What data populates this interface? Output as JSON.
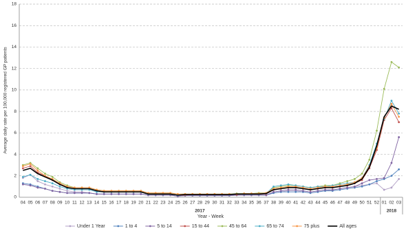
{
  "chart_data": {
    "type": "line",
    "y_label": "Average daily rate per 100,000 registered GP patients",
    "x_label": "Year - Week",
    "categories": [
      "04",
      "05",
      "06",
      "07",
      "08",
      "09",
      "10",
      "11",
      "12",
      "13",
      "14",
      "15",
      "16",
      "17",
      "18",
      "19",
      "20",
      "21",
      "22",
      "23",
      "24",
      "25",
      "26",
      "27",
      "28",
      "29",
      "30",
      "31",
      "32",
      "33",
      "34",
      "35",
      "36",
      "37",
      "38",
      "39",
      "40",
      "41",
      "42",
      "43",
      "44",
      "45",
      "46",
      "47",
      "48",
      "49",
      "50",
      "51",
      "52",
      "01",
      "02",
      "03"
    ],
    "x_groups": [
      {
        "label": "2017",
        "count": 49
      },
      {
        "label": "2018",
        "count": 3
      }
    ],
    "ylim": [
      0,
      18
    ],
    "yticks": [
      0,
      2,
      4,
      6,
      8,
      10,
      12,
      14,
      16,
      18
    ],
    "grid": true,
    "legend": "bottom",
    "series": [
      {
        "name": "Under 1 Year",
        "color": "#b3a2c7",
        "values": [
          1.8,
          2.1,
          1.5,
          1.2,
          1.0,
          0.8,
          0.6,
          0.5,
          0.5,
          0.4,
          0.3,
          0.3,
          0.3,
          0.3,
          0.3,
          0.3,
          0.3,
          0.2,
          0.2,
          0.2,
          0.2,
          0.1,
          0.2,
          0.2,
          0.2,
          0.2,
          0.2,
          0.2,
          0.2,
          0.2,
          0.2,
          0.2,
          0.2,
          0.2,
          0.4,
          0.5,
          0.6,
          0.6,
          0.5,
          0.4,
          0.5,
          0.6,
          0.7,
          0.8,
          0.9,
          1.0,
          1.1,
          1.2,
          1.3,
          0.7,
          0.9,
          1.7
        ]
      },
      {
        "name": "1 to 4",
        "color": "#4f81bd",
        "values": [
          1.3,
          1.2,
          1.0,
          0.8,
          0.6,
          0.5,
          0.4,
          0.4,
          0.4,
          0.4,
          0.3,
          0.3,
          0.3,
          0.3,
          0.3,
          0.3,
          0.3,
          0.2,
          0.2,
          0.2,
          0.2,
          0.1,
          0.15,
          0.15,
          0.15,
          0.15,
          0.15,
          0.15,
          0.15,
          0.2,
          0.2,
          0.2,
          0.2,
          0.2,
          0.4,
          0.5,
          0.5,
          0.5,
          0.5,
          0.4,
          0.5,
          0.6,
          0.6,
          0.7,
          0.8,
          0.9,
          1.0,
          1.2,
          1.5,
          1.7,
          2.0,
          2.6
        ]
      },
      {
        "name": "5 to 14",
        "color": "#8064a2",
        "values": [
          1.2,
          1.1,
          0.9,
          0.8,
          0.6,
          0.5,
          0.4,
          0.4,
          0.4,
          0.4,
          0.3,
          0.3,
          0.3,
          0.3,
          0.3,
          0.3,
          0.3,
          0.2,
          0.2,
          0.2,
          0.2,
          0.1,
          0.15,
          0.15,
          0.15,
          0.15,
          0.15,
          0.15,
          0.15,
          0.2,
          0.2,
          0.2,
          0.2,
          0.2,
          0.5,
          0.6,
          0.7,
          0.7,
          0.6,
          0.5,
          0.6,
          0.7,
          0.7,
          0.8,
          0.9,
          1.0,
          1.3,
          1.6,
          1.7,
          1.8,
          3.2,
          5.6
        ]
      },
      {
        "name": "15 to 44",
        "color": "#c0504d",
        "values": [
          2.7,
          2.9,
          2.3,
          2.0,
          1.6,
          1.2,
          0.9,
          0.8,
          0.8,
          0.8,
          0.6,
          0.5,
          0.5,
          0.5,
          0.5,
          0.5,
          0.5,
          0.3,
          0.3,
          0.3,
          0.3,
          0.2,
          0.2,
          0.25,
          0.25,
          0.25,
          0.25,
          0.25,
          0.25,
          0.25,
          0.3,
          0.3,
          0.3,
          0.3,
          0.7,
          0.8,
          0.9,
          0.9,
          0.8,
          0.7,
          0.8,
          0.9,
          0.9,
          1.0,
          1.1,
          1.3,
          1.6,
          2.7,
          4.4,
          7.2,
          8.3,
          7.0
        ]
      },
      {
        "name": "45 to 64",
        "color": "#9bbb59",
        "values": [
          3.0,
          3.2,
          2.7,
          2.2,
          1.9,
          1.4,
          1.1,
          0.9,
          0.9,
          0.9,
          0.7,
          0.6,
          0.6,
          0.6,
          0.6,
          0.6,
          0.6,
          0.4,
          0.4,
          0.4,
          0.4,
          0.3,
          0.3,
          0.3,
          0.3,
          0.3,
          0.3,
          0.3,
          0.3,
          0.35,
          0.35,
          0.35,
          0.4,
          0.4,
          0.9,
          1.0,
          1.1,
          1.1,
          1.0,
          0.9,
          1.0,
          1.1,
          1.1,
          1.3,
          1.5,
          1.7,
          2.2,
          3.5,
          6.2,
          10.1,
          12.6,
          12.1
        ]
      },
      {
        "name": "65 to 74",
        "color": "#4bacc6",
        "values": [
          1.9,
          2.1,
          1.7,
          1.5,
          1.3,
          1.0,
          0.8,
          0.7,
          0.7,
          0.7,
          0.5,
          0.5,
          0.5,
          0.5,
          0.5,
          0.5,
          0.5,
          0.3,
          0.3,
          0.3,
          0.3,
          0.2,
          0.25,
          0.25,
          0.25,
          0.25,
          0.25,
          0.25,
          0.25,
          0.3,
          0.3,
          0.3,
          0.3,
          0.35,
          1.0,
          1.1,
          1.2,
          1.1,
          1.0,
          0.9,
          1.0,
          1.0,
          1.1,
          1.2,
          1.3,
          1.4,
          1.8,
          3.0,
          5.0,
          7.3,
          9.0,
          7.8
        ]
      },
      {
        "name": "75 plus",
        "color": "#f79646",
        "values": [
          2.9,
          3.1,
          2.5,
          2.0,
          1.7,
          1.3,
          1.0,
          0.9,
          0.9,
          0.9,
          0.7,
          0.6,
          0.6,
          0.6,
          0.6,
          0.6,
          0.6,
          0.4,
          0.4,
          0.4,
          0.4,
          0.3,
          0.3,
          0.3,
          0.3,
          0.3,
          0.3,
          0.3,
          0.3,
          0.3,
          0.35,
          0.35,
          0.35,
          0.4,
          0.8,
          0.9,
          1.0,
          1.0,
          0.9,
          0.8,
          0.9,
          1.0,
          1.0,
          1.1,
          1.2,
          1.4,
          1.8,
          2.9,
          4.6,
          7.4,
          8.7,
          7.5
        ]
      },
      {
        "name": "All ages",
        "color": "#000000",
        "values": [
          2.5,
          2.7,
          2.2,
          1.9,
          1.6,
          1.2,
          0.9,
          0.8,
          0.8,
          0.8,
          0.6,
          0.5,
          0.5,
          0.5,
          0.5,
          0.5,
          0.5,
          0.3,
          0.3,
          0.3,
          0.3,
          0.2,
          0.25,
          0.25,
          0.25,
          0.25,
          0.25,
          0.25,
          0.25,
          0.3,
          0.3,
          0.3,
          0.3,
          0.35,
          0.7,
          0.8,
          0.9,
          0.9,
          0.8,
          0.7,
          0.8,
          0.9,
          0.9,
          1.0,
          1.1,
          1.3,
          1.7,
          2.8,
          4.8,
          7.5,
          8.5,
          8.2
        ]
      }
    ]
  }
}
